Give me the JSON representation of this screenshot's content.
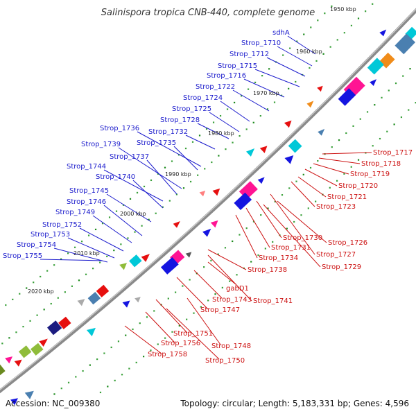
{
  "header": {
    "title": "Salinispora tropica CNB-440, complete genome"
  },
  "footer": {
    "accession": "Accession: NC_009380",
    "summary": "Topology: circular; Length: 5,183,331 bp; Genes: 4,596"
  },
  "colors": {
    "backbone": "#8a8a8a",
    "forward_label": "#1a1acc",
    "reverse_label": "#cc1010",
    "tick": "#1c8a1c"
  },
  "scale_ticks": [
    "1950 kbp",
    "1960 kbp",
    "1970 kbp",
    "1980 kbp",
    "1990 kbp",
    "2000 kbp",
    "2010 kbp",
    "2020 kbp"
  ],
  "forward_labels": [
    "sdhA",
    "Strop_1710",
    "Strop_1712",
    "Strop_1715",
    "Strop_1716",
    "Strop_1722",
    "Strop_1724",
    "Strop_1725",
    "Strop_1728",
    "Strop_1732",
    "Strop_1736",
    "Strop_1735",
    "Strop_1739",
    "Strop_1737",
    "Strop_1744",
    "Strop_1740",
    "Strop_1745",
    "Strop_1746",
    "Strop_1749",
    "Strop_1752",
    "Strop_1753",
    "Strop_1754",
    "Strop_1755"
  ],
  "reverse_labels": [
    "Strop_1717",
    "Strop_1718",
    "Strop_1719",
    "Strop_1720",
    "Strop_1721",
    "Strop_1723",
    "Strop_1730",
    "Strop_1726",
    "Strop_1731",
    "Strop_1727",
    "Strop_1734",
    "Strop_1729",
    "Strop_1738",
    "gabD1",
    "Strop_1743",
    "Strop_1741",
    "Strop_1747",
    "Strop_1751",
    "Strop_1748",
    "Strop_1756",
    "Strop_1758",
    "Strop_1750"
  ]
}
